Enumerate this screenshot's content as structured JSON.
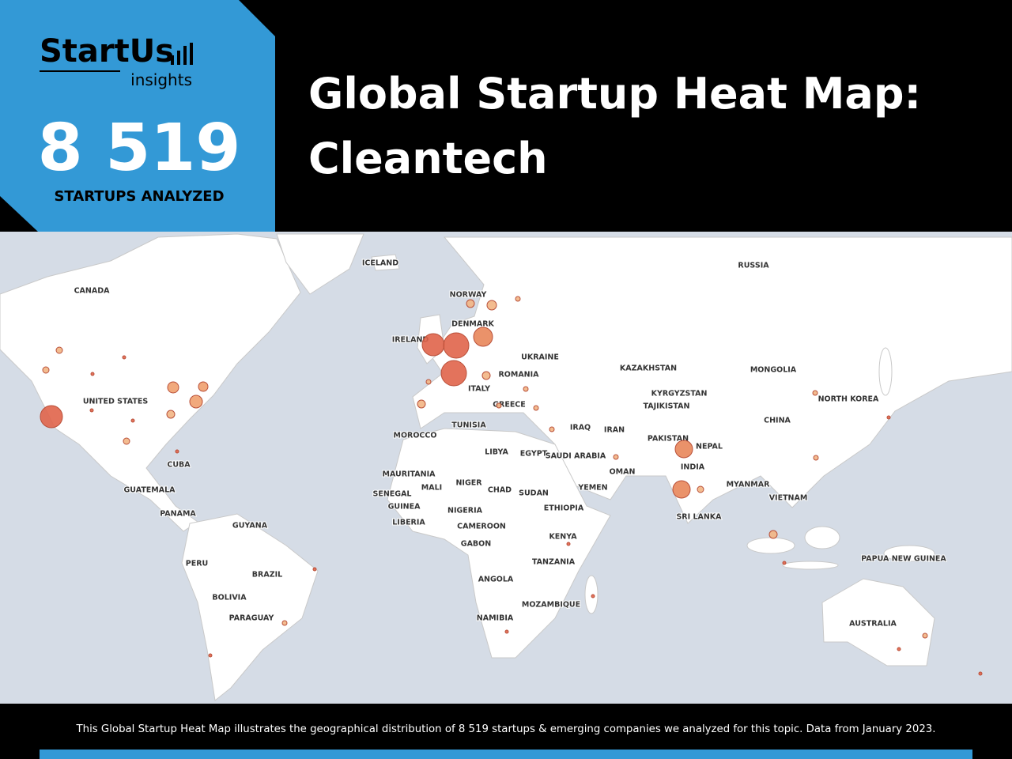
{
  "header": {
    "logo": {
      "brand": "StartUs",
      "sub": "insights"
    },
    "count": "8 519",
    "count_label": "STARTUPS ANALYZED",
    "title": [
      "Global Startup Heat Map:",
      "Cleantech"
    ]
  },
  "map": {
    "labels": [
      "ICELAND",
      "RUSSIA",
      "CANADA",
      "NORWAY",
      "DENMARK",
      "IRELAND",
      "UKRAINE",
      "KAZAKHSTAN",
      "MONGOLIA",
      "ROMANIA",
      "UNITED STATES",
      "ITALY",
      "KYRGYZSTAN",
      "NORTH KOREA",
      "TAJIKISTAN",
      "GREECE",
      "TUNISIA",
      "IRAQ",
      "IRAN",
      "CHINA",
      "MOROCCO",
      "PAKISTAN",
      "NEPAL",
      "LIBYA",
      "EGYPT",
      "SAUDI ARABIA",
      "OMAN",
      "INDIA",
      "CUBA",
      "MAURITANIA",
      "NIGER",
      "MALI",
      "YEMEN",
      "MYANMAR",
      "GUATEMALA",
      "SENEGAL",
      "CHAD",
      "SUDAN",
      "VIETNAM",
      "GUINEA",
      "NIGERIA",
      "ETHIOPIA",
      "PANAMA",
      "SRI LANKA",
      "LIBERIA",
      "CAMEROON",
      "GUYANA",
      "KENYA",
      "GABON",
      "PAPUA NEW GUINEA",
      "PERU",
      "TANZANIA",
      "BRAZIL",
      "ANGOLA",
      "BOLIVIA",
      "MOZAMBIQUE",
      "PARAGUAY",
      "NAMIBIA",
      "AUSTRALIA"
    ]
  },
  "footer": {
    "text": "This Global Startup Heat Map illustrates the geographical distribution of 8 519 startups & emerging companies we analyzed for this topic. Data from January 2023."
  }
}
